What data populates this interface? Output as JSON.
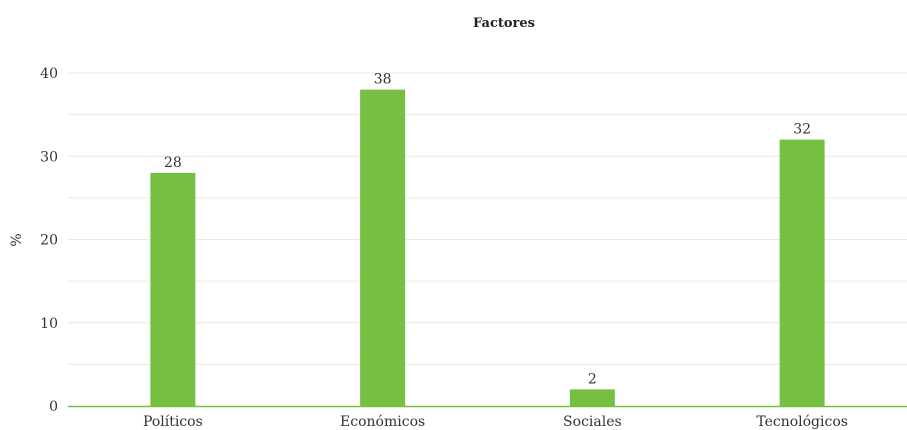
{
  "chart_data": {
    "type": "bar",
    "title": "Factores",
    "xlabel": "",
    "ylabel": "%",
    "categories": [
      "Políticos",
      "Económicos",
      "Sociales",
      "Tecnológicos"
    ],
    "values": [
      28,
      38,
      2,
      32
    ],
    "data_labels": [
      "28",
      "38",
      "2",
      "32"
    ],
    "ylim": [
      0,
      40
    ],
    "yticks": [
      0,
      10,
      20,
      30,
      40
    ],
    "ytick_labels": [
      "0",
      "10",
      "20",
      "30",
      "40"
    ],
    "grid": true,
    "legend": "none",
    "colors": {
      "bar": "#76bf43",
      "grid": "#e6efcf",
      "baseline": "#76bf43"
    }
  }
}
